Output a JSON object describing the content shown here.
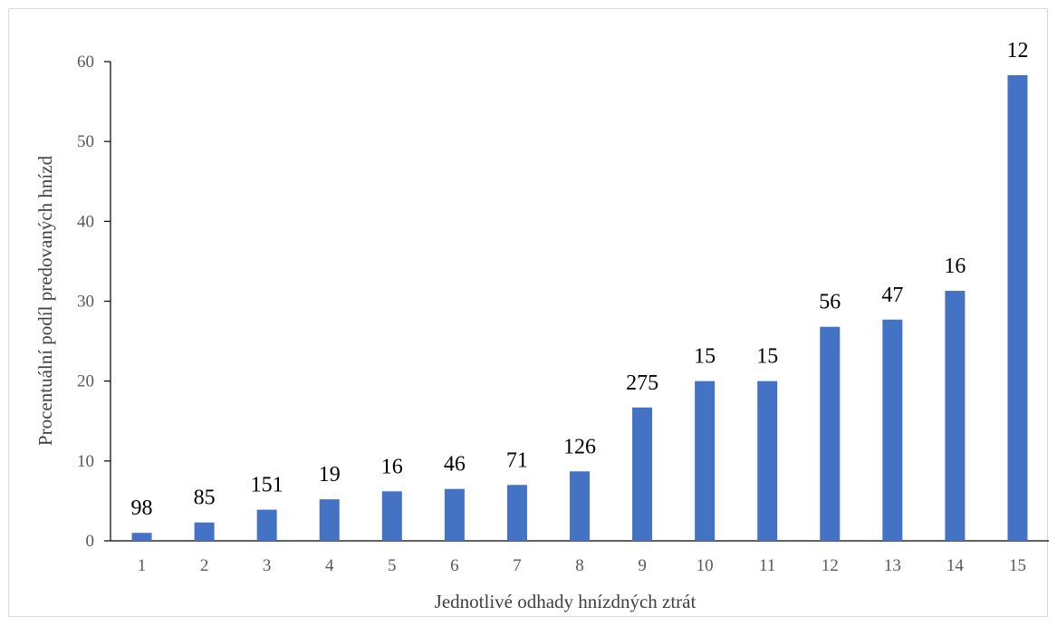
{
  "chart_data": {
    "type": "bar",
    "title": "",
    "xlabel": "Jednotlivé odhady hnízdných ztrát",
    "ylabel": "Procentuální podíl predovaných hnízd",
    "categories": [
      "1",
      "2",
      "3",
      "4",
      "5",
      "6",
      "7",
      "8",
      "9",
      "10",
      "11",
      "12",
      "13",
      "14",
      "15"
    ],
    "values": [
      1.0,
      2.3,
      3.9,
      5.2,
      6.2,
      6.5,
      7.0,
      8.7,
      16.7,
      20.0,
      20.0,
      26.8,
      27.7,
      31.3,
      58.3
    ],
    "data_labels": [
      "98",
      "85",
      "151",
      "19",
      "16",
      "46",
      "71",
      "126",
      "275",
      "15",
      "15",
      "56",
      "47",
      "16",
      "12"
    ],
    "ylim": [
      0,
      60
    ],
    "yticks": [
      0,
      10,
      20,
      30,
      40,
      50,
      60
    ],
    "grid": false,
    "legend": "none",
    "bar_color": "#4472C4"
  }
}
